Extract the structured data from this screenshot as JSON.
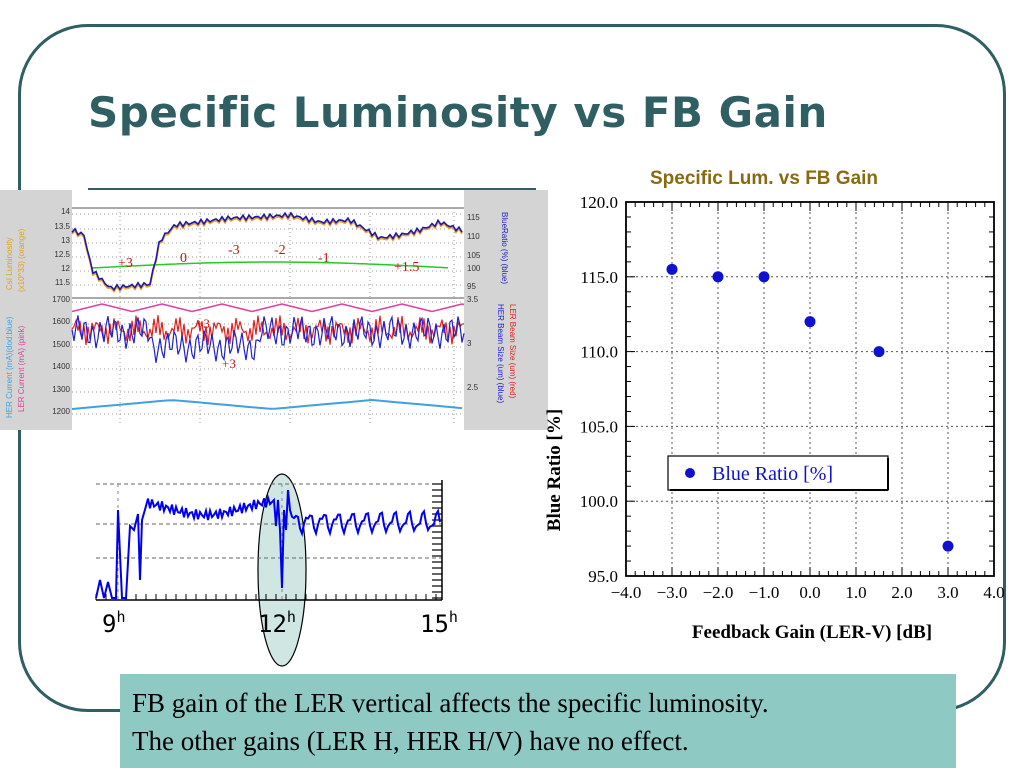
{
  "slide": {
    "title": "Specific Luminosity vs FB Gain",
    "caption_line1": "FB gain of the LER vertical affects the specific luminosity.",
    "caption_line2": "The other gains (LER H, HER H/V) have no effect."
  },
  "strip_chart": {
    "top_panel": {
      "left_axis_title_1": "CsI Luminosity",
      "left_axis_title_2": "(x10^33) (orange)",
      "right_axis_title": "BlueRatio (%) (blue)",
      "left_ticks": [
        "14",
        "13.5",
        "13",
        "12.5",
        "12",
        "11.5"
      ],
      "right_ticks": [
        "115",
        "110",
        "105",
        "100",
        "95"
      ],
      "gain_annotations": [
        "+3",
        "0",
        "-3",
        "-2",
        "-1",
        "+1.5"
      ]
    },
    "bottom_panel": {
      "left_axis_title_1": "HER Current (mA)(dod:blue)",
      "left_axis_title_2": "LER Current (mA) (pink)",
      "right_axis_title_1": "LER Beam Size (um) (red)",
      "right_axis_title_2": "HER Beam Size (um) (blue)",
      "left_ticks": [
        "1700",
        "1600",
        "1500",
        "1400",
        "1300",
        "1200"
      ],
      "right_ticks": [
        "3.5",
        "3",
        "2.5"
      ],
      "annotations": [
        "+3",
        "+3"
      ]
    },
    "colors": {
      "blue_ratio": "#1a1aa8",
      "luminosity": "#f0a030",
      "green": "#22cc22",
      "ler_current": "#e040a0",
      "ler_size": "#e02020",
      "her_size": "#2020d0",
      "her_current": "#40a0e0"
    }
  },
  "monitor": {
    "time_labels": [
      "9",
      "12",
      "15"
    ],
    "hour_suffix": "h",
    "color": "#0000ee",
    "highlight_color": "#cfe6e2"
  },
  "chart_data": {
    "type": "scatter",
    "title": "Specific Lum. vs FB Gain",
    "xlabel": "Feedback Gain (LER-V) [dB]",
    "ylabel": "Blue Ratio [%]",
    "xlim": [
      -4.0,
      4.0
    ],
    "ylim": [
      95.0,
      120.0
    ],
    "x_ticks": [
      "−4.0",
      "−3.0",
      "−2.0",
      "−1.0",
      "0.0",
      "1.0",
      "2.0",
      "3.0",
      "4.0"
    ],
    "y_ticks": [
      "95.0",
      "100.0",
      "105.0",
      "110.0",
      "115.0",
      "120.0"
    ],
    "grid": true,
    "legend_position": "center-left",
    "series": [
      {
        "name": "Blue Ratio [%]",
        "color": "#1010d0",
        "x": [
          -3.0,
          -2.0,
          -1.0,
          0.0,
          1.5,
          3.0
        ],
        "y": [
          115.5,
          115.0,
          115.0,
          112.0,
          110.0,
          97.0
        ]
      }
    ]
  }
}
